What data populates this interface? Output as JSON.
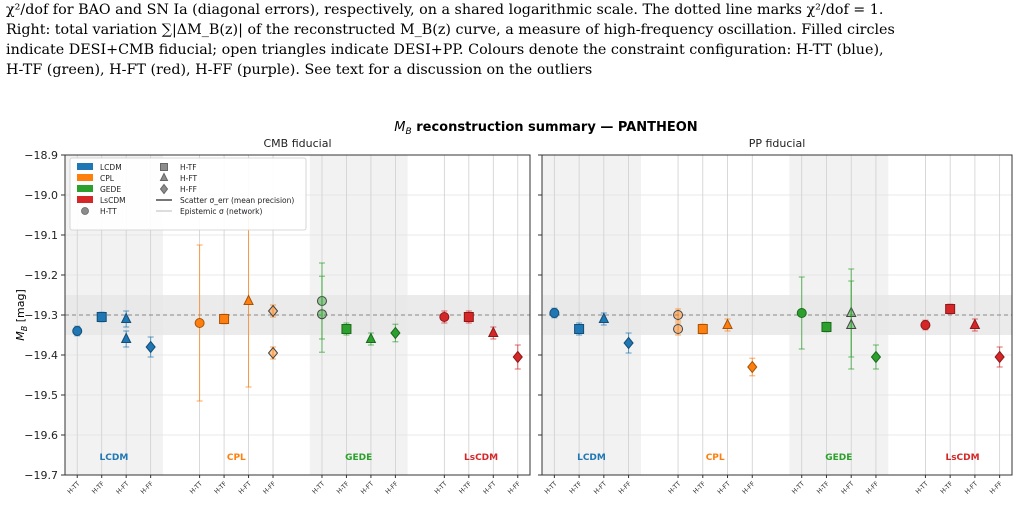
{
  "caption": {
    "line1": "χ²/dof for BAO and SN Ia (diagonal errors), respectively, on a shared logarithmic scale. The dotted line marks χ²/dof = 1.",
    "line2": "Right: total variation ∑|ΔM_B(z)| of the reconstructed M_B(z) curve, a measure of high-frequency oscillation. Filled circles",
    "line3": "indicate DESI+CMB fiducial; open triangles indicate DESI+PP. Colours denote the constraint configuration: H-TT (blue),",
    "line4": "H-TF (green), H-FT (red), H-FF (purple). See text for a discussion on the outliers"
  },
  "chart_data": {
    "type": "scatter",
    "title": "M_B reconstruction summary — PANTHEON",
    "ylabel": "M_B [mag]",
    "ylim": [
      -19.7,
      -18.9
    ],
    "yticks": [
      -18.9,
      -19.0,
      -19.1,
      -19.2,
      -19.3,
      -19.4,
      -19.5,
      -19.6,
      -19.7
    ],
    "ytick_labels": [
      "−18.9",
      "−19.0",
      "−19.1",
      "−19.2",
      "−19.3",
      "−19.4",
      "−19.5",
      "−19.6",
      "−19.7"
    ],
    "grid": true,
    "reference_line": -19.3,
    "reference_band": [
      -19.35,
      -19.25
    ],
    "legend_position": "top-left",
    "groups": [
      "LCDM",
      "CPL",
      "GEDE",
      "LsCDM"
    ],
    "group_colors": {
      "LCDM": "#1f77b4",
      "CPL": "#ff7f0e",
      "GEDE": "#2ca02c",
      "LsCDM": "#d62728"
    },
    "configs": [
      "H-TT",
      "H-TF",
      "H-FT",
      "H-FF"
    ],
    "config_markers": {
      "H-TT": "circle",
      "H-TF": "square",
      "H-FT": "triangle",
      "H-FF": "diamond"
    },
    "legend": {
      "models": [
        "LCDM",
        "CPL",
        "GEDE",
        "LsCDM"
      ],
      "markers": [
        "H-TT",
        "H-TF",
        "H-FT",
        "H-FF"
      ],
      "scatter_label": "Scatter σ_err (mean precision)",
      "epistemic_label": "Epistemic σ (network)"
    },
    "panels": [
      {
        "subtitle": "CMB fiducial",
        "points": [
          {
            "model": "LCDM",
            "config": "H-TT",
            "y": -19.34,
            "err": 0.012,
            "variant": "filled"
          },
          {
            "model": "LCDM",
            "config": "H-TF",
            "y": -19.305,
            "err": 0.012,
            "variant": "filled"
          },
          {
            "model": "LCDM",
            "config": "H-FT",
            "y": -19.31,
            "err": 0.02,
            "variant": "filled"
          },
          {
            "model": "LCDM",
            "config": "H-FT",
            "y": -19.36,
            "err": 0.02,
            "variant": "filled"
          },
          {
            "model": "LCDM",
            "config": "H-FF",
            "y": -19.38,
            "err": 0.025,
            "variant": "filled"
          },
          {
            "model": "CPL",
            "config": "H-TT",
            "y": -19.32,
            "err": 0.195,
            "variant": "filled"
          },
          {
            "model": "CPL",
            "config": "H-TF",
            "y": -19.31,
            "err": 0.012,
            "variant": "filled"
          },
          {
            "model": "CPL",
            "config": "H-FT",
            "y": -19.265,
            "err": 0.215,
            "variant": "filled"
          },
          {
            "model": "CPL",
            "config": "H-FF",
            "y": -19.29,
            "err": 0.015,
            "variant": "open"
          },
          {
            "model": "CPL",
            "config": "H-FF",
            "y": -19.395,
            "err": 0.015,
            "variant": "open"
          },
          {
            "model": "GEDE",
            "config": "H-TT",
            "y": -19.265,
            "err": 0.095,
            "variant": "open"
          },
          {
            "model": "GEDE",
            "config": "H-TT",
            "y": -19.298,
            "err": 0.095,
            "variant": "open"
          },
          {
            "model": "GEDE",
            "config": "H-TF",
            "y": -19.335,
            "err": 0.015,
            "variant": "filled"
          },
          {
            "model": "GEDE",
            "config": "H-FT",
            "y": -19.36,
            "err": 0.015,
            "variant": "filled"
          },
          {
            "model": "GEDE",
            "config": "H-FF",
            "y": -19.345,
            "err": 0.022,
            "variant": "filled"
          },
          {
            "model": "LsCDM",
            "config": "H-TT",
            "y": -19.305,
            "err": 0.015,
            "variant": "filled"
          },
          {
            "model": "LsCDM",
            "config": "H-TF",
            "y": -19.305,
            "err": 0.015,
            "variant": "filled"
          },
          {
            "model": "LsCDM",
            "config": "H-FT",
            "y": -19.345,
            "err": 0.015,
            "variant": "filled"
          },
          {
            "model": "LsCDM",
            "config": "H-FF",
            "y": -19.405,
            "err": 0.03,
            "variant": "filled"
          }
        ]
      },
      {
        "subtitle": "PP fiducial",
        "points": [
          {
            "model": "LCDM",
            "config": "H-TT",
            "y": -19.295,
            "err": 0.012,
            "variant": "filled"
          },
          {
            "model": "LCDM",
            "config": "H-TF",
            "y": -19.335,
            "err": 0.015,
            "variant": "filled"
          },
          {
            "model": "LCDM",
            "config": "H-FT",
            "y": -19.31,
            "err": 0.015,
            "variant": "filled"
          },
          {
            "model": "LCDM",
            "config": "H-FF",
            "y": -19.37,
            "err": 0.025,
            "variant": "filled"
          },
          {
            "model": "CPL",
            "config": "H-TT",
            "y": -19.3,
            "err": 0.015,
            "variant": "open"
          },
          {
            "model": "CPL",
            "config": "H-TT",
            "y": -19.335,
            "err": 0.015,
            "variant": "open"
          },
          {
            "model": "CPL",
            "config": "H-TF",
            "y": -19.335,
            "err": 0.012,
            "variant": "filled"
          },
          {
            "model": "CPL",
            "config": "H-FT",
            "y": -19.325,
            "err": 0.015,
            "variant": "filled"
          },
          {
            "model": "CPL",
            "config": "H-FF",
            "y": -19.43,
            "err": 0.022,
            "variant": "filled"
          },
          {
            "model": "GEDE",
            "config": "H-TT",
            "y": -19.295,
            "err": 0.09,
            "variant": "filled"
          },
          {
            "model": "GEDE",
            "config": "H-TF",
            "y": -19.33,
            "err": 0.012,
            "variant": "filled"
          },
          {
            "model": "GEDE",
            "config": "H-FT",
            "y": -19.295,
            "err": 0.11,
            "variant": "open"
          },
          {
            "model": "GEDE",
            "config": "H-FT",
            "y": -19.325,
            "err": 0.11,
            "variant": "open"
          },
          {
            "model": "GEDE",
            "config": "H-FF",
            "y": -19.405,
            "err": 0.03,
            "variant": "filled"
          },
          {
            "model": "LsCDM",
            "config": "H-TT",
            "y": -19.325,
            "err": 0.012,
            "variant": "filled"
          },
          {
            "model": "LsCDM",
            "config": "H-TF",
            "y": -19.285,
            "err": 0.012,
            "variant": "filled"
          },
          {
            "model": "LsCDM",
            "config": "H-FT",
            "y": -19.325,
            "err": 0.015,
            "variant": "filled"
          },
          {
            "model": "LsCDM",
            "config": "H-FF",
            "y": -19.405,
            "err": 0.025,
            "variant": "filled"
          }
        ]
      }
    ]
  }
}
